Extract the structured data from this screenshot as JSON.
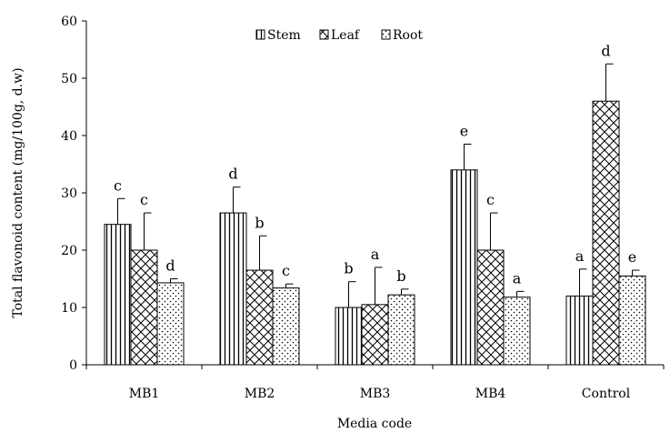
{
  "chart_data": {
    "type": "bar",
    "title": "",
    "xlabel": "Media code",
    "ylabel": "Total flavonoid content (mg/100g, d.w)",
    "ylim": [
      0,
      60
    ],
    "yticks": [
      0,
      10,
      20,
      30,
      40,
      50,
      60
    ],
    "grid": false,
    "legend_position": "top-center",
    "categories": [
      "MB1",
      "MB2",
      "MB3",
      "MB4",
      "Control"
    ],
    "series": [
      {
        "name": "Stem",
        "pattern": "vertical-lines",
        "values": [
          24.5,
          26.5,
          10,
          34,
          12
        ],
        "errors": [
          4.5,
          4.5,
          4.5,
          4.5,
          4.7
        ],
        "labels": [
          "c",
          "d",
          "b",
          "e",
          "a"
        ]
      },
      {
        "name": "Leaf",
        "pattern": "crosshatch",
        "values": [
          20,
          16.5,
          10.5,
          20,
          46
        ],
        "errors": [
          6.5,
          6,
          6.5,
          6.5,
          6.5
        ],
        "labels": [
          "c",
          "b",
          "a",
          "c",
          "d"
        ]
      },
      {
        "name": "Root",
        "pattern": "dots",
        "values": [
          14.3,
          13.4,
          12.2,
          11.8,
          15.5
        ],
        "errors": [
          0.7,
          0.7,
          1,
          1,
          1
        ],
        "labels": [
          "d",
          "c",
          "b",
          "a",
          "e"
        ]
      }
    ],
    "colors": {
      "stroke": "#000000",
      "background": "#ffffff"
    }
  }
}
